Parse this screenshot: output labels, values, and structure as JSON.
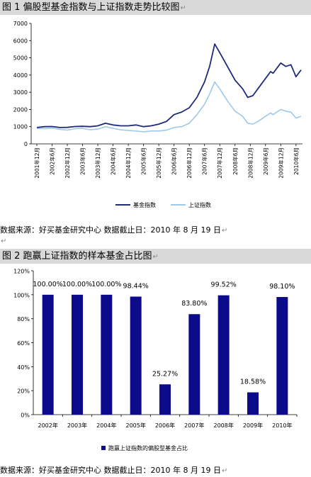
{
  "chart1": {
    "caption": "图 1 偏股型基金指数与上证指数走势比较图",
    "source": "数据来源：好买基金研究中心   数据截止日：2010 年 8 月 19 日",
    "colors": {
      "fund": "#1f2a7a",
      "sse": "#9ec9ea"
    }
  },
  "chart2": {
    "caption": "图 2 跑赢上证指数的样本基金占比图",
    "source": "数据来源：好买基金研究中心   数据截止日：2010 年 8 月 19 日",
    "color": "#0b0b8c"
  },
  "chart_data": [
    {
      "type": "line",
      "title": "偏股型基金指数与上证指数走势比较图",
      "ylim": [
        0,
        7000
      ],
      "yticks": [
        "0",
        "1000",
        "2000",
        "3000",
        "4000",
        "5000",
        "6000",
        "7000"
      ],
      "xticks": [
        "2001年12月",
        "2002年6月",
        "2002年12月",
        "2003年6月",
        "2003年12月",
        "2004年6月",
        "2004年12月",
        "2005年6月",
        "2005年12月",
        "2006年6月",
        "2006年12月",
        "2007年6月",
        "2007年12月",
        "2008年6月",
        "2008年12月",
        "2009年6月",
        "2009年12月",
        "2010年6月"
      ],
      "legend_position": "bottom",
      "series": [
        {
          "name": "基金指数",
          "x": [
            "2001-12",
            "2002-03",
            "2002-06",
            "2002-09",
            "2002-12",
            "2003-03",
            "2003-06",
            "2003-09",
            "2003-12",
            "2004-03",
            "2004-06",
            "2004-09",
            "2004-12",
            "2005-03",
            "2005-06",
            "2005-09",
            "2005-12",
            "2006-03",
            "2006-06",
            "2006-09",
            "2006-12",
            "2007-03",
            "2007-06",
            "2007-08",
            "2007-10",
            "2007-12",
            "2008-03",
            "2008-06",
            "2008-09",
            "2008-11",
            "2009-01",
            "2009-03",
            "2009-06",
            "2009-08",
            "2009-09",
            "2009-11",
            "2009-12",
            "2010-02",
            "2010-04",
            "2010-06",
            "2010-08"
          ],
          "values": [
            950,
            1000,
            1010,
            950,
            960,
            1010,
            1020,
            1000,
            1050,
            1200,
            1100,
            1050,
            1050,
            1100,
            1000,
            1050,
            1150,
            1300,
            1700,
            1850,
            2100,
            2700,
            3600,
            4500,
            5800,
            5300,
            4500,
            3700,
            3200,
            2700,
            2800,
            3200,
            3800,
            4200,
            4100,
            4500,
            4700,
            4500,
            4600,
            3900,
            4300
          ]
        },
        {
          "name": "上证指数",
          "x": [
            "2001-12",
            "2002-03",
            "2002-06",
            "2002-09",
            "2002-12",
            "2003-03",
            "2003-06",
            "2003-09",
            "2003-12",
            "2004-03",
            "2004-06",
            "2004-09",
            "2004-12",
            "2005-03",
            "2005-06",
            "2005-09",
            "2005-12",
            "2006-03",
            "2006-06",
            "2006-09",
            "2006-12",
            "2007-03",
            "2007-06",
            "2007-08",
            "2007-10",
            "2007-12",
            "2008-03",
            "2008-06",
            "2008-09",
            "2008-11",
            "2009-01",
            "2009-03",
            "2009-06",
            "2009-08",
            "2009-09",
            "2009-11",
            "2009-12",
            "2010-02",
            "2010-04",
            "2010-06",
            "2010-08"
          ],
          "values": [
            900,
            880,
            920,
            850,
            800,
            880,
            900,
            820,
            860,
            1000,
            900,
            820,
            780,
            750,
            700,
            750,
            750,
            800,
            950,
            1000,
            1200,
            1700,
            2300,
            2900,
            3600,
            3200,
            2500,
            1900,
            1600,
            1200,
            1150,
            1300,
            1600,
            1800,
            1700,
            1900,
            2000,
            1900,
            1850,
            1500,
            1600
          ]
        }
      ]
    },
    {
      "type": "bar",
      "title": "跑赢上证指数的样本基金占比图",
      "categories": [
        "2002年",
        "2003年",
        "2004年",
        "2005年",
        "2006年",
        "2007年",
        "2008年",
        "2009年",
        "2010年"
      ],
      "values": [
        100.0,
        100.0,
        100.0,
        98.44,
        25.27,
        83.8,
        99.52,
        18.58,
        98.1
      ],
      "labels": [
        "100.00%",
        "100.00%",
        "100.00%",
        "98.44%",
        "25.27%",
        "83.80%",
        "99.52%",
        "18.58%",
        "98.10%"
      ],
      "ylim": [
        0,
        120
      ],
      "yticks": [
        "0%",
        "20%",
        "40%",
        "60%",
        "80%",
        "100%",
        "120%"
      ],
      "series": [
        {
          "name": "跑赢上证指数的偏股型基金占比"
        }
      ],
      "legend_position": "bottom"
    }
  ]
}
